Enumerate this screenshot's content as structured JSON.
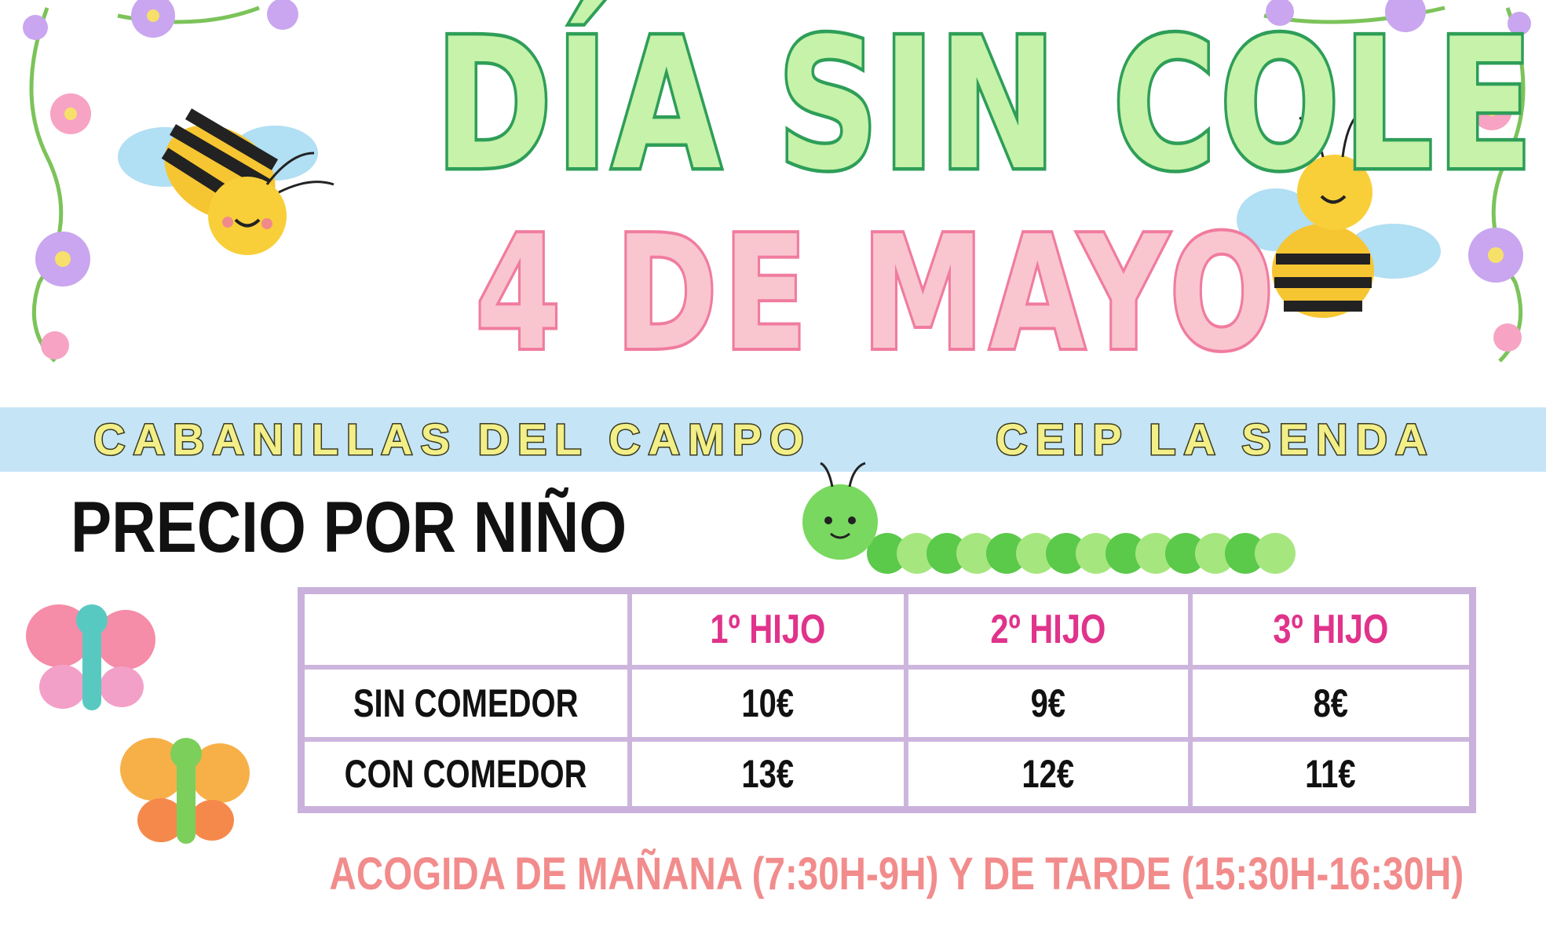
{
  "poster": {
    "title_line1": "DÍA SIN COLE",
    "title_line2": "4 DE MAYO",
    "location": "CABANILLAS DEL CAMPO",
    "school": "CEIP LA SENDA",
    "price_heading": "PRECIO POR NIÑO",
    "footer": "ACOGIDA DE MAÑANA (7:30H-9H)  Y DE TARDE (15:30H-16:30H)"
  },
  "price_table": {
    "columns": [
      "",
      "1º HIJO",
      "2º HIJO",
      "3º HIJO"
    ],
    "rows": [
      {
        "label": "SIN COMEDOR",
        "values": [
          "10€",
          "9€",
          "8€"
        ]
      },
      {
        "label": "CON COMEDOR",
        "values": [
          "13€",
          "12€",
          "11€"
        ]
      }
    ]
  },
  "decorations": [
    "bee-icon",
    "bee-icon",
    "caterpillar-icon",
    "butterfly-icon",
    "butterfly-icon",
    "flower-vine-icon",
    "flower-vine-icon"
  ],
  "colors": {
    "title_green": "#c6f2a9",
    "title_pink": "#f9c6cf",
    "band_blue": "#c5e5f6",
    "header_magenta": "#e0338b",
    "table_border": "#c9b1dc",
    "footer_coral": "#f28c8c"
  }
}
